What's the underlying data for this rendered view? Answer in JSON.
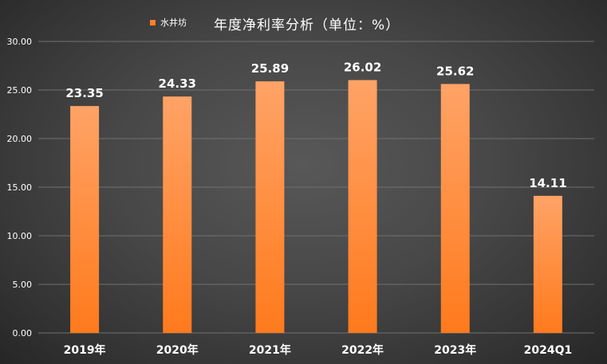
{
  "chart_data": {
    "type": "bar",
    "title": "年度净利率分析（单位：%）",
    "categories": [
      "2019年",
      "2020年",
      "2021年",
      "2022年",
      "2023年",
      "2024Q1"
    ],
    "series": [
      {
        "name": "水井坊",
        "values": [
          23.35,
          24.33,
          25.89,
          26.02,
          25.62,
          14.11
        ]
      }
    ],
    "data_labels": [
      "23.35",
      "24.33",
      "25.89",
      "26.02",
      "25.62",
      "14.11"
    ],
    "ylim": [
      0,
      30
    ],
    "yticks": [
      "0.00",
      "5.00",
      "10.00",
      "15.00",
      "20.00",
      "25.00",
      "30.00"
    ],
    "xlabel": "",
    "ylabel": "",
    "grid": true,
    "legend_position": "top-left",
    "colors": {
      "bar_light": "#ffa366",
      "bar_dark": "#ff7a1c",
      "legend_swatch": "#ff7f27",
      "grid": "#707070",
      "text": "#ffffff"
    }
  }
}
